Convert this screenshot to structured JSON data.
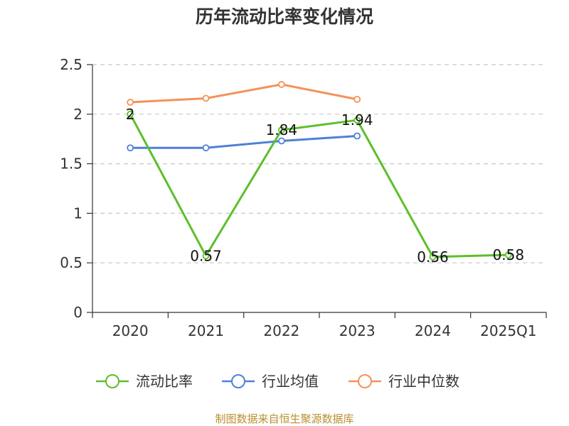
{
  "chart_data": {
    "type": "line",
    "title": "历年流动比率变化情况",
    "categories": [
      "2020",
      "2021",
      "2022",
      "2023",
      "2024",
      "2025Q1"
    ],
    "ylim": [
      0,
      2.5
    ],
    "yticks": [
      0,
      0.5,
      1,
      1.5,
      2,
      2.5
    ],
    "ytick_labels": [
      "0",
      "0.5",
      "1",
      "1.5",
      "2",
      "2.5"
    ],
    "grid": true,
    "legend_position": "bottom",
    "series": [
      {
        "name": "流动比率",
        "color": "#5cbf2a",
        "values": [
          2,
          0.57,
          1.84,
          1.94,
          0.56,
          0.58
        ],
        "labels": [
          "2",
          "0.57",
          "1.84",
          "1.94",
          "0.56",
          "0.58"
        ]
      },
      {
        "name": "行业均值",
        "color": "#4f81d6",
        "values": [
          1.66,
          1.66,
          1.73,
          1.78,
          null,
          null
        ]
      },
      {
        "name": "行业中位数",
        "color": "#f5915a",
        "values": [
          2.12,
          2.16,
          2.3,
          2.15,
          null,
          null
        ]
      }
    ],
    "source": "制图数据来自恒生聚源数据库"
  }
}
